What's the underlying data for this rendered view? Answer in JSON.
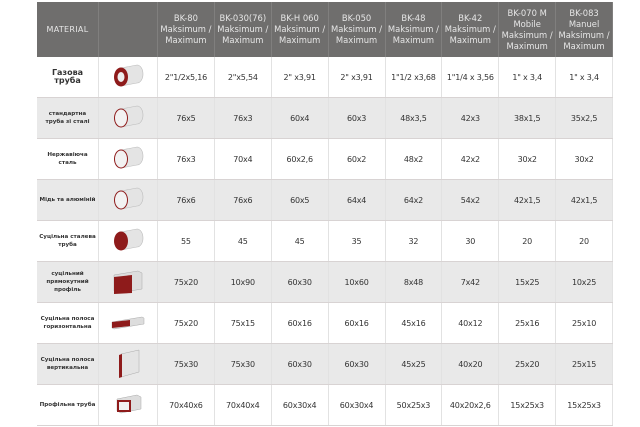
{
  "header": {
    "material_label": "MATERIAL",
    "columns": [
      "BK-80 Maksimum / Maximum",
      "BK-030(76) Maksimum / Maximum",
      "BK-H 060 Maksimum / Maximum",
      "BK-050 Maksimum / Maximum",
      "BK-48 Maksimum / Maximum",
      "BK-42 Maksimum / Maximum",
      "BK-070 M Mobile Maksimum / Maximum",
      "BK-083 Manuel Maksimum / Maximum"
    ]
  },
  "rows": [
    {
      "name": "Газова труба",
      "icon": "pipe-thick-icon",
      "values": [
        "2\"1/2x5,16",
        "2\"x5,54",
        "2\" x3,91",
        "2\" x3,91",
        "1\"1/2 x3,68",
        "1\"1/4 x 3,56",
        "1\" x 3,4",
        "1\" x 3,4"
      ]
    },
    {
      "name": "стандартна труба зі сталі",
      "icon": "pipe-icon",
      "values": [
        "76x5",
        "76x3",
        "60x4",
        "60x3",
        "48x3,5",
        "42x3",
        "38x1,5",
        "35x2,5"
      ]
    },
    {
      "name": "Нержавіюча сталь",
      "icon": "pipe-icon",
      "values": [
        "76x3",
        "70x4",
        "60x2,6",
        "60x2",
        "48x2",
        "42x2",
        "30x2",
        "30x2"
      ]
    },
    {
      "name": "Мідь та алюміній",
      "icon": "pipe-icon",
      "values": [
        "76x6",
        "76x6",
        "60x5",
        "64x4",
        "64x2",
        "54x2",
        "42x1,5",
        "42x1,5"
      ]
    },
    {
      "name": "Суцільна сталева труба",
      "icon": "solid-rod-icon",
      "values": [
        "55",
        "45",
        "45",
        "35",
        "32",
        "30",
        "20",
        "20"
      ]
    },
    {
      "name": "суцільний прямокутний профіль",
      "icon": "solid-bar-icon",
      "values": [
        "75x20",
        "10x90",
        "60x30",
        "10x60",
        "8x48",
        "7x42",
        "15x25",
        "10x25"
      ]
    },
    {
      "name": "Суцільна полоса горизонтальна",
      "icon": "flat-strip-horizontal-icon",
      "values": [
        "75x20",
        "75x15",
        "60x16",
        "60x16",
        "45x16",
        "40x12",
        "25x16",
        "25x10"
      ]
    },
    {
      "name": "Суцільна полоса вертикальна",
      "icon": "flat-strip-vertical-icon",
      "values": [
        "75x30",
        "75x30",
        "60x30",
        "60x30",
        "45x25",
        "40x20",
        "25x20",
        "25x15"
      ]
    },
    {
      "name": "Профільна труба",
      "icon": "rectangular-tube-icon",
      "values": [
        "70x40x6",
        "70x40x4",
        "60x30x4",
        "60x30x4",
        "50x25x3",
        "40x20x2,6",
        "15x25x3",
        "15x25x3"
      ]
    }
  ],
  "colors": {
    "header_bg": "#6f6e6d",
    "accent_red": "#8e1b1b",
    "row_alt": "#e9e9e9"
  }
}
